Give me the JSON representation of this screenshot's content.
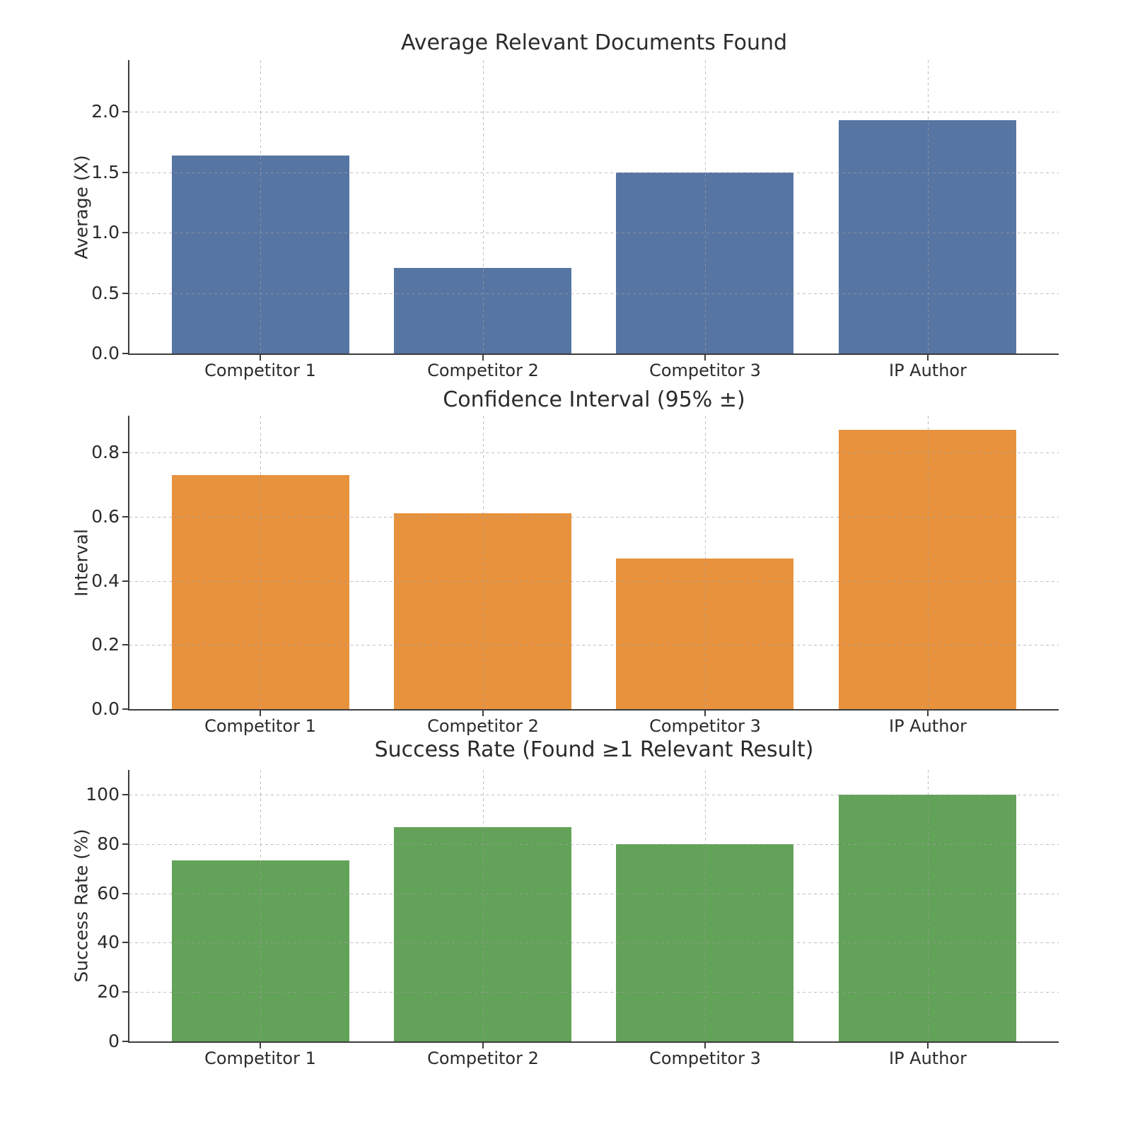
{
  "figure": {
    "background_color": "#ffffff",
    "text_color": "#2b2b2b",
    "grid_color": "#c6c6c6",
    "spine_color": "#3d3d3d"
  },
  "chart_data": [
    {
      "type": "bar",
      "title": "Average Relevant Documents Found",
      "xlabel": "",
      "ylabel": "Average (X)",
      "categories": [
        "Competitor 1",
        "Competitor 2",
        "Competitor 3",
        "IP Author"
      ],
      "values": [
        1.64,
        0.71,
        1.5,
        1.93
      ],
      "ylim": [
        0,
        2.43
      ],
      "yticks": [
        0,
        0.5,
        1.0,
        1.5,
        2.0
      ],
      "ytick_labels": [
        "0.0",
        "0.5",
        "1.0",
        "1.5",
        "2.0"
      ],
      "bar_color": "#5775A3",
      "grid": "dotted x+y",
      "legend": "none"
    },
    {
      "type": "bar",
      "title": "Confidence Interval (95% ±)",
      "xlabel": "",
      "ylabel": "Interval",
      "categories": [
        "Competitor 1",
        "Competitor 2",
        "Competitor 3",
        "IP Author"
      ],
      "values": [
        0.73,
        0.61,
        0.47,
        0.87
      ],
      "ylim": [
        0,
        0.915
      ],
      "yticks": [
        0,
        0.2,
        0.4,
        0.6,
        0.8
      ],
      "ytick_labels": [
        "0.0",
        "0.2",
        "0.4",
        "0.6",
        "0.8"
      ],
      "bar_color": "#E8923D",
      "grid": "dotted x+y",
      "legend": "none"
    },
    {
      "type": "bar",
      "title": "Success Rate (Found ≥1 Relevant Result)",
      "xlabel": "",
      "ylabel": "Success Rate (%)",
      "categories": [
        "Competitor 1",
        "Competitor 2",
        "Competitor 3",
        "IP Author"
      ],
      "values": [
        73.3,
        86.7,
        80.0,
        100.0
      ],
      "ylim": [
        0,
        110
      ],
      "yticks": [
        0,
        20,
        40,
        60,
        80,
        100
      ],
      "ytick_labels": [
        "0",
        "20",
        "40",
        "60",
        "80",
        "100"
      ],
      "bar_color": "#63A259",
      "grid": "dotted x+y",
      "legend": "none"
    }
  ]
}
